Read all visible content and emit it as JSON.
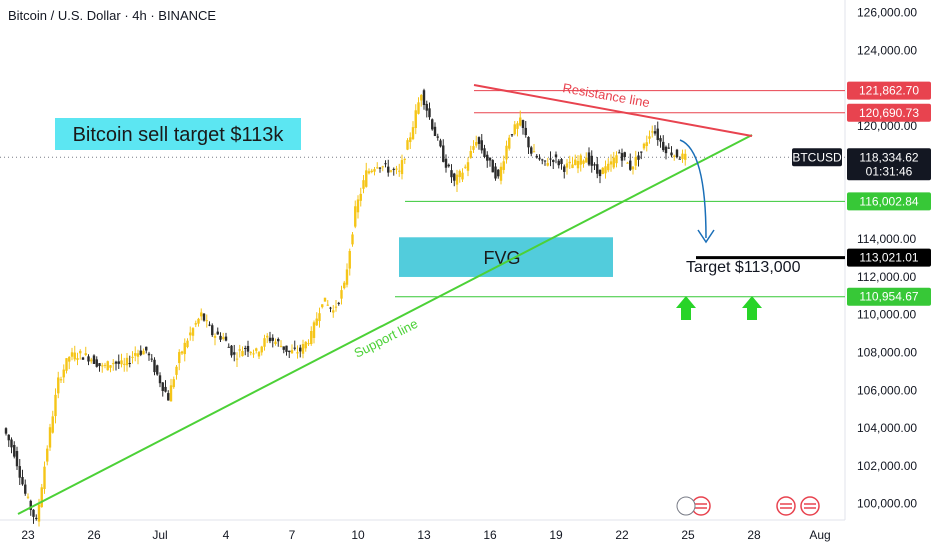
{
  "header": {
    "title": "Bitcoin / U.S. Dollar · 4h · BINANCE"
  },
  "colors": {
    "up": "#f5c518",
    "down": "#2b2b2b",
    "support": "#4cd137",
    "resistance": "#e8434f",
    "fvg": "#3fc7d8",
    "arrow": "#1a6fb8",
    "green_arrow": "#28d428",
    "level": "#37c837"
  },
  "chart_data": {
    "type": "candlestick",
    "symbol": "BTCUSD",
    "exchange": "BINANCE",
    "timeframe": "4h",
    "y_axis": {
      "ylim": [
        98800,
        126800
      ],
      "ticks": [
        "100,000.00",
        "102,000.00",
        "104,000.00",
        "106,000.00",
        "108,000.00",
        "110,000.00",
        "112,000.00",
        "114,000.00",
        "116,000.00",
        "118,000.00",
        "120,000.00",
        "122,000.00",
        "124,000.00",
        "126,000.00"
      ]
    },
    "x_axis": {
      "ticks": [
        "23",
        "26",
        "Jul",
        "4",
        "7",
        "10",
        "13",
        "16",
        "19",
        "22",
        "25",
        "28",
        "Aug"
      ]
    },
    "path": [
      [
        0,
        104000
      ],
      [
        1,
        102700
      ],
      [
        2,
        100500
      ],
      [
        3,
        99000
      ],
      [
        4,
        103000
      ],
      [
        5,
        106500
      ],
      [
        6,
        107800
      ],
      [
        7,
        107900
      ],
      [
        8,
        107700
      ],
      [
        9,
        107200
      ],
      [
        10,
        107500
      ],
      [
        11,
        107300
      ],
      [
        12,
        108000
      ],
      [
        13,
        108100
      ],
      [
        14,
        106800
      ],
      [
        15,
        105600
      ],
      [
        16,
        107800
      ],
      [
        17,
        109000
      ],
      [
        18,
        110000
      ],
      [
        19,
        109000
      ],
      [
        20,
        108800
      ],
      [
        21,
        107800
      ],
      [
        22,
        108300
      ],
      [
        23,
        108000
      ],
      [
        24,
        108800
      ],
      [
        25,
        108500
      ],
      [
        26,
        108000
      ],
      [
        27,
        108100
      ],
      [
        28,
        108900
      ],
      [
        29,
        110800
      ],
      [
        30,
        110200
      ],
      [
        31,
        111500
      ],
      [
        32,
        115500
      ],
      [
        33,
        117500
      ],
      [
        34,
        118000
      ],
      [
        35,
        117700
      ],
      [
        36,
        117500
      ],
      [
        37,
        119500
      ],
      [
        38,
        121800
      ],
      [
        39,
        120000
      ],
      [
        40,
        118300
      ],
      [
        41,
        117000
      ],
      [
        42,
        117800
      ],
      [
        43,
        119300
      ],
      [
        44,
        118200
      ],
      [
        45,
        117200
      ],
      [
        46,
        119500
      ],
      [
        47,
        120200
      ],
      [
        48,
        118600
      ],
      [
        49,
        118000
      ],
      [
        50,
        118300
      ],
      [
        51,
        117800
      ],
      [
        52,
        118000
      ],
      [
        53,
        118400
      ],
      [
        54,
        117500
      ],
      [
        55,
        117800
      ],
      [
        56,
        118600
      ],
      [
        57,
        117800
      ],
      [
        58,
        118600
      ],
      [
        59,
        119900
      ],
      [
        60,
        118900
      ],
      [
        61,
        118500
      ],
      [
        62,
        118300
      ]
    ],
    "levels": [
      {
        "label": "121,862.70",
        "value": 121862.7,
        "kind": "resistance"
      },
      {
        "label": "120,690.73",
        "value": 120690.73,
        "kind": "resistance"
      },
      {
        "label": "116,002.84",
        "value": 116002.84,
        "kind": "support"
      },
      {
        "label": "113,021.01",
        "value": 113021.01,
        "kind": "target"
      },
      {
        "label": "110,954.67",
        "value": 110954.67,
        "kind": "support"
      }
    ],
    "current": {
      "symbol": "BTCUSD",
      "price": "118,334.62",
      "countdown": "01:31:46",
      "value": 118334.62
    },
    "annotations": {
      "title_box": "Bitcoin sell target $113k",
      "fvg": "FVG",
      "support": "Support line",
      "resistance": "Resistance line",
      "target": "Target $113,000"
    }
  }
}
